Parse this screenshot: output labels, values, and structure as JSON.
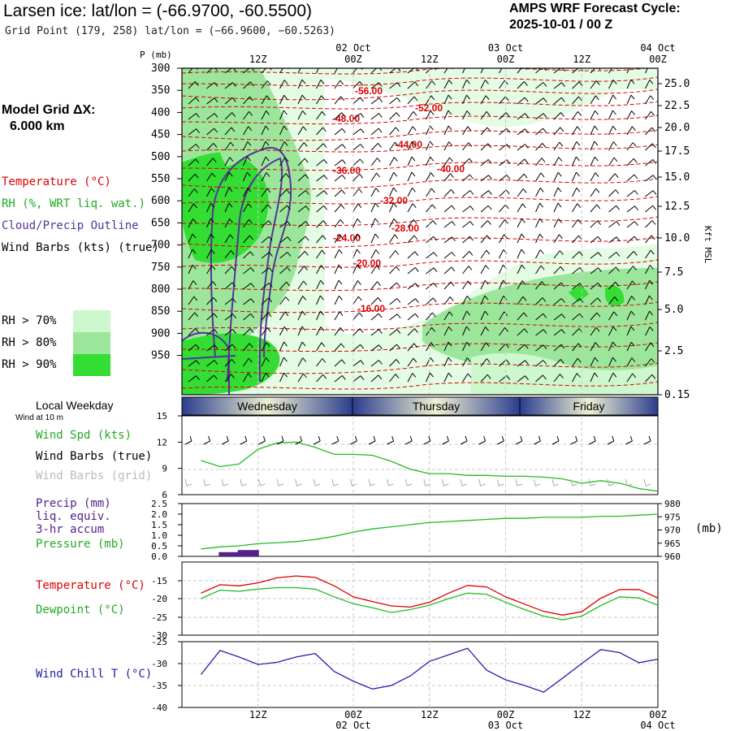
{
  "header": {
    "title": "Larsen ice:  lat/lon = (-66.9700, -60.5500)",
    "subtitle": "Grid Point (179, 258) lat/lon = (−66.9600, −60.5263)",
    "cycle_line1": "AMPS WRF Forecast Cycle:",
    "cycle_line2": "2025-10-01 / 00  Z"
  },
  "left_panel": {
    "model_grid_line1": "Model Grid ΔX:",
    "model_grid_line2": "6.000 km",
    "legend_temperature": "Temperature (°C)",
    "legend_rh": "RH (%, WRT liq. wat.)",
    "legend_cloud": "Cloud/Precip Outline",
    "legend_wind": "Wind Barbs (kts) (true)",
    "rh70": "RH > 70%",
    "rh80": "RH > 80%",
    "rh90": "RH > 90%",
    "rh_colors": [
      "#cdf7cd",
      "#9be69b",
      "#33dd33"
    ]
  },
  "time_axis": {
    "top_labels": [
      "12Z",
      "00Z",
      "12Z",
      "00Z",
      "12Z",
      "00Z"
    ],
    "date_labels": [
      "02 Oct",
      "03 Oct",
      "04 Oct"
    ],
    "bottom_labels": [
      "12Z",
      "00Z",
      "12Z",
      "00Z",
      "12Z",
      "00Z"
    ]
  },
  "pressure_axis": {
    "label": "P (mb)",
    "ticks": [
      "300",
      "350",
      "400",
      "450",
      "500",
      "550",
      "600",
      "650",
      "700",
      "750",
      "800",
      "850",
      "900",
      "950"
    ]
  },
  "height_axis": {
    "label": "Kft MSL",
    "ticks": [
      "25.0",
      "22.5",
      "20.0",
      "17.5",
      "15.0",
      "12.5",
      "10.0",
      "7.5",
      "5.0",
      "2.5",
      "0.15"
    ]
  },
  "temp_contours": [
    "-56.00",
    "-52.00",
    "-48.00",
    "-44.00",
    "-40.00",
    "-36.00",
    "-32.00",
    "-28.00",
    "-24.00",
    "-20.00",
    "-16.00"
  ],
  "weekday": {
    "label": "Local Weekday",
    "sublabel": "Wind at 10 m",
    "days": [
      "Wednesday",
      "Thursday",
      "Friday"
    ]
  },
  "panel_labels": {
    "wind_spd": "Wind Spd (kts)",
    "wind_barbs_true": "Wind Barbs (true)",
    "wind_barbs_grid": "Wind Barbs (grid)",
    "precip1": "Precip (mm)",
    "precip2": "liq. equiv.",
    "precip3": "3-hr accum",
    "pressure": "Pressure (mb)",
    "pressure_unit": "(mb)",
    "temperature": "Temperature (°C)",
    "dewpoint": "Dewpoint (°C)",
    "windchill": "Wind Chill T (°C)"
  },
  "colors": {
    "temperature": "#dd0000",
    "dewpoint": "#22bb22",
    "windchill": "#2222aa",
    "precip": "#552288",
    "cloud_outline": "#553399"
  },
  "chart_data": [
    {
      "type": "line",
      "title": "Wind Spd (kts)",
      "x_hours": [
        0,
        3,
        6,
        9,
        12,
        15,
        18,
        21,
        24,
        27,
        30,
        33,
        36,
        39,
        42,
        45,
        48,
        51,
        54,
        57,
        60,
        63,
        66,
        69,
        72
      ],
      "values": [
        9.9,
        9.2,
        9.5,
        11.2,
        11.9,
        12.0,
        11.4,
        10.6,
        10.6,
        10.5,
        9.8,
        8.9,
        8.4,
        8.4,
        8.2,
        8.2,
        8.1,
        8.1,
        8.0,
        7.8,
        7.3,
        7.6,
        7.3,
        6.7,
        6.4
      ],
      "ylim": [
        6,
        15
      ],
      "yticks": [
        "15",
        "12",
        "9",
        "6"
      ]
    },
    {
      "type": "bar",
      "title": "Precip (mm)",
      "x_hours": [
        6,
        9
      ],
      "values": [
        0.2,
        0.3
      ],
      "ylim": [
        0,
        2.5
      ],
      "yticks": [
        "2.5",
        "2.0",
        "1.5",
        "1.0",
        "0.5",
        "0.0"
      ]
    },
    {
      "type": "line",
      "title": "Pressure (mb)",
      "x_hours": [
        0,
        3,
        6,
        9,
        12,
        15,
        18,
        21,
        24,
        27,
        30,
        33,
        36,
        39,
        42,
        45,
        48,
        51,
        54,
        57,
        60,
        63,
        66,
        69,
        72
      ],
      "values": [
        962.8,
        963.6,
        964.0,
        964.8,
        965.2,
        965.6,
        966.4,
        967.6,
        969.2,
        970.4,
        971.2,
        972.0,
        972.8,
        973.2,
        973.6,
        974.0,
        974.4,
        974.4,
        974.8,
        974.8,
        974.8,
        975.2,
        975.2,
        975.6,
        976.0
      ],
      "ylim": [
        960,
        980
      ],
      "yticks": [
        "980",
        "975",
        "970",
        "965",
        "960"
      ]
    },
    {
      "type": "line",
      "title": "Temperature (°C)",
      "x_hours": [
        0,
        3,
        6,
        9,
        12,
        15,
        18,
        21,
        24,
        27,
        30,
        33,
        36,
        39,
        42,
        45,
        48,
        51,
        54,
        57,
        60,
        63,
        66,
        69,
        72
      ],
      "series": [
        {
          "name": "Temperature (°C)",
          "values": [
            -18.5,
            -16.2,
            -16.5,
            -15.7,
            -14.3,
            -13.8,
            -14.2,
            -16.5,
            -19.5,
            -20.8,
            -22.0,
            -22.3,
            -21.0,
            -18.5,
            -16.4,
            -16.8,
            -19.5,
            -21.5,
            -23.5,
            -24.5,
            -23.6,
            -19.9,
            -17.5,
            -17.5,
            -19.8
          ]
        },
        {
          "name": "Dewpoint (°C)",
          "values": [
            -20.0,
            -17.7,
            -18.0,
            -17.4,
            -17.0,
            -17.0,
            -17.4,
            -19.5,
            -21.4,
            -22.5,
            -23.8,
            -23.0,
            -21.8,
            -20.0,
            -18.5,
            -18.8,
            -21.0,
            -23.0,
            -24.8,
            -25.8,
            -24.8,
            -21.9,
            -19.5,
            -19.8,
            -21.8
          ]
        }
      ],
      "ylim": [
        -30,
        -10
      ],
      "yticks": [
        "-15",
        "-20",
        "-25",
        "-30"
      ]
    },
    {
      "type": "line",
      "title": "Wind Chill T (°C)",
      "x_hours": [
        0,
        3,
        6,
        9,
        12,
        15,
        18,
        21,
        24,
        27,
        30,
        33,
        36,
        39,
        42,
        45,
        48,
        51,
        54,
        57,
        60,
        63,
        66,
        69,
        72
      ],
      "values": [
        -32.5,
        -27.0,
        -28.5,
        -30.2,
        -29.7,
        -28.5,
        -27.7,
        -31.8,
        -34.0,
        -35.8,
        -35.0,
        -32.8,
        -29.5,
        -28.0,
        -26.5,
        -31.5,
        -33.7,
        -35.0,
        -36.5,
        -33.3,
        -30.0,
        -26.8,
        -27.5,
        -29.8,
        -29.0
      ],
      "ylim": [
        -40,
        -25
      ],
      "yticks": [
        "-25",
        "-30",
        "-35",
        "-40"
      ]
    }
  ]
}
